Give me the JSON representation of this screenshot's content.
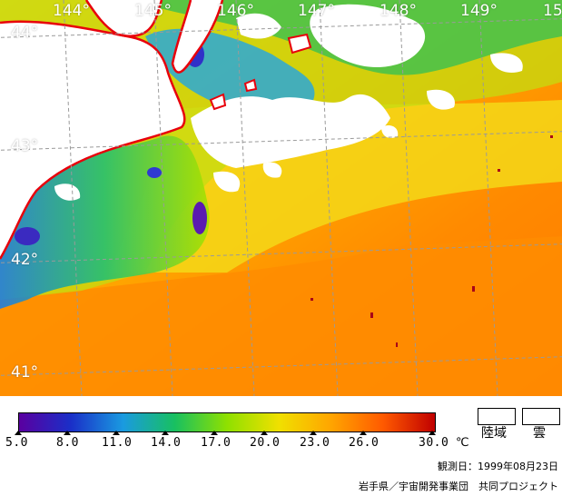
{
  "map": {
    "longitude_labels": [
      "144°",
      "145°",
      "146°",
      "147°",
      "148°",
      "149°",
      "15"
    ],
    "latitude_labels": [
      "44°",
      "43°",
      "42°",
      "41°"
    ],
    "coastline_color": "#e8000b",
    "graticule_color": "#9a9a9a",
    "land_color": "#ffffff",
    "cloud_color": "#ffffff"
  },
  "legend": {
    "scale_ticks": [
      "5.0",
      "8.0",
      "11.0",
      "14.0",
      "17.0",
      "20.0",
      "23.0",
      "26.0",
      "30.0"
    ],
    "unit": "℃",
    "gradient_stops": [
      "#5a00a0",
      "#1a2fc8",
      "#1a9ae0",
      "#18c060",
      "#8fe000",
      "#f0e000",
      "#ffa500",
      "#ff5a00",
      "#c00000"
    ],
    "key": {
      "land_label": "陸域",
      "cloud_label": "雲"
    }
  },
  "footer": {
    "observation_date": "観測日：1999年08月23日",
    "credit": "岩手県／宇宙開発事業団　共同プロジェクト"
  }
}
